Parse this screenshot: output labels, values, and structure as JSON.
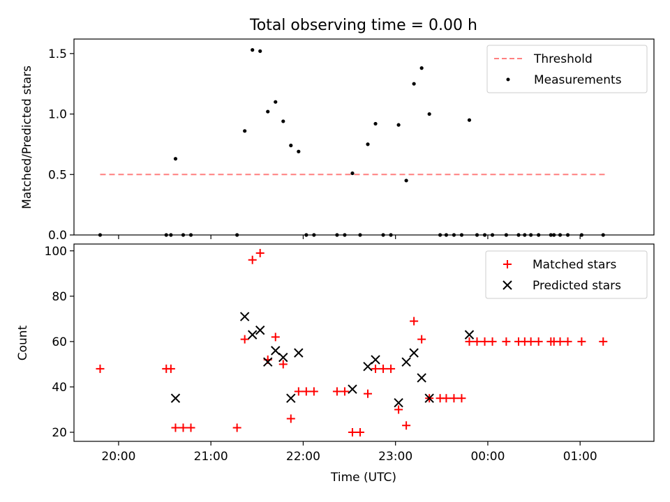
{
  "chart_data": [
    {
      "type": "scatter",
      "title": "Total observing time = 0.00 h",
      "xlabel": "",
      "ylabel": "Matched/Predicted stars",
      "xlim": [
        "19:31",
        "01:48"
      ],
      "ylim": [
        0,
        1.62
      ],
      "yticks": [
        "0.0",
        "0.5",
        "1.0",
        "1.5"
      ],
      "xticks": [
        "20:00",
        "21:00",
        "22:00",
        "23:00",
        "00:00",
        "01:00"
      ],
      "legend_position": "top-right",
      "threshold": {
        "name": "Threshold",
        "color": "#ff7f7f",
        "value": 0.5,
        "x_range": [
          "19:48",
          "01:17"
        ]
      },
      "series": [
        {
          "name": "Measurements",
          "color": "#000000",
          "marker": "dot",
          "points": [
            {
              "x": "19:48",
              "y": 0
            },
            {
              "x": "20:31",
              "y": 0
            },
            {
              "x": "20:34",
              "y": 0
            },
            {
              "x": "20:37",
              "y": 0.63
            },
            {
              "x": "20:42",
              "y": 0
            },
            {
              "x": "20:47",
              "y": 0
            },
            {
              "x": "21:17",
              "y": 0
            },
            {
              "x": "21:22",
              "y": 0.86
            },
            {
              "x": "21:27",
              "y": 1.53
            },
            {
              "x": "21:32",
              "y": 1.52
            },
            {
              "x": "21:37",
              "y": 1.02
            },
            {
              "x": "21:42",
              "y": 1.1
            },
            {
              "x": "21:47",
              "y": 0.94
            },
            {
              "x": "21:52",
              "y": 0.74
            },
            {
              "x": "21:57",
              "y": 0.69
            },
            {
              "x": "22:02",
              "y": 0
            },
            {
              "x": "22:07",
              "y": 0
            },
            {
              "x": "22:22",
              "y": 0
            },
            {
              "x": "22:27",
              "y": 0
            },
            {
              "x": "22:32",
              "y": 0.51
            },
            {
              "x": "22:37",
              "y": 0
            },
            {
              "x": "22:42",
              "y": 0.75
            },
            {
              "x": "22:47",
              "y": 0.92
            },
            {
              "x": "22:52",
              "y": 0
            },
            {
              "x": "22:57",
              "y": 0
            },
            {
              "x": "23:02",
              "y": 0.91
            },
            {
              "x": "23:07",
              "y": 0.45
            },
            {
              "x": "23:12",
              "y": 1.25
            },
            {
              "x": "23:17",
              "y": 1.38
            },
            {
              "x": "23:22",
              "y": 1.0
            },
            {
              "x": "23:29",
              "y": 0
            },
            {
              "x": "23:33",
              "y": 0
            },
            {
              "x": "23:38",
              "y": 0
            },
            {
              "x": "23:43",
              "y": 0
            },
            {
              "x": "23:48",
              "y": 0.95
            },
            {
              "x": "23:53",
              "y": 0
            },
            {
              "x": "23:58",
              "y": 0
            },
            {
              "x": "00:03",
              "y": 0
            },
            {
              "x": "00:12",
              "y": 0
            },
            {
              "x": "00:20",
              "y": 0
            },
            {
              "x": "00:24",
              "y": 0
            },
            {
              "x": "00:28",
              "y": 0
            },
            {
              "x": "00:33",
              "y": 0
            },
            {
              "x": "00:41",
              "y": 0
            },
            {
              "x": "00:43",
              "y": 0
            },
            {
              "x": "00:47",
              "y": 0
            },
            {
              "x": "00:52",
              "y": 0
            },
            {
              "x": "01:01",
              "y": 0
            },
            {
              "x": "01:15",
              "y": 0
            }
          ]
        }
      ]
    },
    {
      "type": "scatter",
      "title": "",
      "xlabel": "Time (UTC)",
      "ylabel": "Count",
      "xlim": [
        "19:31",
        "01:48"
      ],
      "ylim": [
        16,
        103
      ],
      "yticks": [
        "20",
        "40",
        "60",
        "80",
        "100"
      ],
      "xticks": [
        "20:00",
        "21:00",
        "22:00",
        "23:00",
        "00:00",
        "01:00"
      ],
      "legend_position": "top-right",
      "series": [
        {
          "name": "Matched stars",
          "color": "#ff0000",
          "marker": "plus",
          "points": [
            {
              "x": "19:48",
              "y": 48
            },
            {
              "x": "20:31",
              "y": 48
            },
            {
              "x": "20:34",
              "y": 48
            },
            {
              "x": "20:37",
              "y": 22
            },
            {
              "x": "20:42",
              "y": 22
            },
            {
              "x": "20:47",
              "y": 22
            },
            {
              "x": "21:17",
              "y": 22
            },
            {
              "x": "21:22",
              "y": 61
            },
            {
              "x": "21:27",
              "y": 96
            },
            {
              "x": "21:32",
              "y": 99
            },
            {
              "x": "21:37",
              "y": 52
            },
            {
              "x": "21:42",
              "y": 62
            },
            {
              "x": "21:47",
              "y": 50
            },
            {
              "x": "21:52",
              "y": 26
            },
            {
              "x": "21:57",
              "y": 38
            },
            {
              "x": "22:02",
              "y": 38
            },
            {
              "x": "22:07",
              "y": 38
            },
            {
              "x": "22:22",
              "y": 38
            },
            {
              "x": "22:27",
              "y": 38
            },
            {
              "x": "22:32",
              "y": 20
            },
            {
              "x": "22:37",
              "y": 20
            },
            {
              "x": "22:42",
              "y": 37
            },
            {
              "x": "22:47",
              "y": 48
            },
            {
              "x": "22:52",
              "y": 48
            },
            {
              "x": "22:57",
              "y": 48
            },
            {
              "x": "23:02",
              "y": 30
            },
            {
              "x": "23:07",
              "y": 23
            },
            {
              "x": "23:12",
              "y": 69
            },
            {
              "x": "23:17",
              "y": 61
            },
            {
              "x": "23:22",
              "y": 35
            },
            {
              "x": "23:29",
              "y": 35
            },
            {
              "x": "23:33",
              "y": 35
            },
            {
              "x": "23:38",
              "y": 35
            },
            {
              "x": "23:43",
              "y": 35
            },
            {
              "x": "23:48",
              "y": 60
            },
            {
              "x": "23:53",
              "y": 60
            },
            {
              "x": "23:58",
              "y": 60
            },
            {
              "x": "00:03",
              "y": 60
            },
            {
              "x": "00:12",
              "y": 60
            },
            {
              "x": "00:20",
              "y": 60
            },
            {
              "x": "00:24",
              "y": 60
            },
            {
              "x": "00:28",
              "y": 60
            },
            {
              "x": "00:33",
              "y": 60
            },
            {
              "x": "00:41",
              "y": 60
            },
            {
              "x": "00:43",
              "y": 60
            },
            {
              "x": "00:47",
              "y": 60
            },
            {
              "x": "00:52",
              "y": 60
            },
            {
              "x": "01:01",
              "y": 60
            },
            {
              "x": "01:15",
              "y": 60
            }
          ]
        },
        {
          "name": "Predicted stars",
          "color": "#000000",
          "marker": "x",
          "points": [
            {
              "x": "20:37",
              "y": 35
            },
            {
              "x": "21:22",
              "y": 71
            },
            {
              "x": "21:27",
              "y": 63
            },
            {
              "x": "21:32",
              "y": 65
            },
            {
              "x": "21:37",
              "y": 51
            },
            {
              "x": "21:42",
              "y": 56
            },
            {
              "x": "21:47",
              "y": 53
            },
            {
              "x": "21:52",
              "y": 35
            },
            {
              "x": "21:57",
              "y": 55
            },
            {
              "x": "22:32",
              "y": 39
            },
            {
              "x": "22:42",
              "y": 49
            },
            {
              "x": "22:47",
              "y": 52
            },
            {
              "x": "23:02",
              "y": 33
            },
            {
              "x": "23:07",
              "y": 51
            },
            {
              "x": "23:12",
              "y": 55
            },
            {
              "x": "23:17",
              "y": 44
            },
            {
              "x": "23:22",
              "y": 35
            },
            {
              "x": "23:48",
              "y": 63
            }
          ]
        }
      ]
    }
  ]
}
